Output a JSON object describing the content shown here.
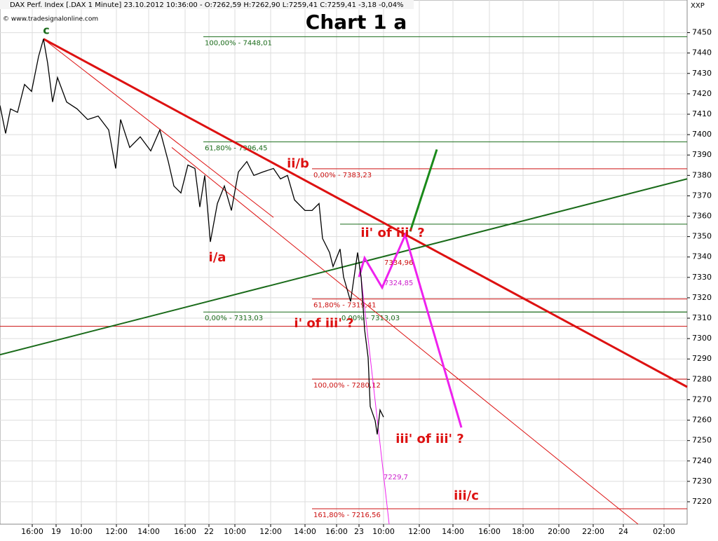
{
  "chart_data": {
    "type": "line",
    "title": "Chart 1 a",
    "header": "DAX Perf. Index [.DAX 1 Minute] 23.10.2012 10:36:00 - O:7262,59 H:7262,90 L:7259,41 C:7259,41 -3,18 -0,04%",
    "source": "© www.tradesignalonline.com",
    "symbol": "XXP",
    "color": "#000000",
    "grid": true,
    "xlim": [
      0,
      39.2
    ],
    "xticks": [
      {
        "value": 1.84,
        "label": "16:00"
      },
      {
        "value": 3.2,
        "label": "19"
      },
      {
        "value": 4.64,
        "label": "10:00"
      },
      {
        "value": 6.64,
        "label": "12:00"
      },
      {
        "value": 8.48,
        "label": "14:00"
      },
      {
        "value": 10.56,
        "label": "16:00"
      },
      {
        "value": 11.92,
        "label": "22"
      },
      {
        "value": 13.4,
        "label": "10:00"
      },
      {
        "value": 15.44,
        "label": "12:00"
      },
      {
        "value": 17.4,
        "label": "14:00"
      },
      {
        "value": 19.2,
        "label": "16:00"
      },
      {
        "value": 20.48,
        "label": "23"
      },
      {
        "value": 21.88,
        "label": "10:00"
      },
      {
        "value": 23.92,
        "label": "12:00"
      },
      {
        "value": 25.84,
        "label": "14:00"
      },
      {
        "value": 27.92,
        "label": "16:00"
      },
      {
        "value": 29.84,
        "label": "18:00"
      },
      {
        "value": 31.88,
        "label": "20:00"
      },
      {
        "value": 33.84,
        "label": "22:00"
      },
      {
        "value": 35.56,
        "label": "24"
      },
      {
        "value": 37.88,
        "label": "02:00"
      }
    ],
    "ylim": [
      7209,
      7466
    ],
    "yticks": [
      7220,
      7230,
      7240,
      7250,
      7260,
      7270,
      7280,
      7290,
      7300,
      7310,
      7320,
      7330,
      7340,
      7350,
      7360,
      7370,
      7380,
      7390,
      7400,
      7410,
      7420,
      7430,
      7440,
      7450
    ],
    "x": [
      0,
      0.32,
      0.6,
      1,
      1.4,
      1.8,
      2.2,
      2.48,
      2.72,
      3,
      3.28,
      3.8,
      4.4,
      5,
      5.6,
      6.2,
      6.6,
      6.88,
      7.4,
      8,
      8.6,
      9.12,
      9.6,
      9.92,
      10.32,
      10.72,
      11.12,
      11.4,
      11.68,
      12,
      12.4,
      12.8,
      13.2,
      13.6,
      14.08,
      14.48,
      15,
      15.6,
      16,
      16.4,
      16.8,
      17.4,
      17.8,
      18.2,
      18.4,
      18.8,
      19,
      19.4,
      19.6,
      20,
      20.4,
      20.6,
      20.8,
      21,
      21.12,
      21.4,
      21.52,
      21.68,
      21.88
    ],
    "values": [
      7414.3,
      7400.6,
      7412.6,
      7410.9,
      7424.6,
      7421.2,
      7438.3,
      7446.9,
      7434.9,
      7416,
      7428,
      7416,
      7412.6,
      7407.4,
      7409.1,
      7402.3,
      7383.4,
      7407.4,
      7393.7,
      7398.9,
      7392,
      7402.3,
      7386.8,
      7374.8,
      7371.4,
      7385.1,
      7383.4,
      7364.5,
      7380,
      7347.4,
      7366.2,
      7374.8,
      7362.8,
      7381.7,
      7386.8,
      7380,
      7381.7,
      7383.4,
      7378.3,
      7380,
      7368,
      7362.8,
      7362.8,
      7366.2,
      7349.1,
      7342.2,
      7335.3,
      7343.9,
      7330.2,
      7318.2,
      7342.2,
      7330.2,
      7304.4,
      7290.7,
      7266.7,
      7259.8,
      7253,
      7265,
      7261.5
    ],
    "levels": [
      {
        "label": "100,00% - 7448,01",
        "value": 7448.01,
        "x_start": 11.6,
        "color": "#1a6b1a"
      },
      {
        "label": "61,80% - 7396,45",
        "value": 7396.45,
        "x_start": 11.6,
        "color": "#1a6b1a"
      },
      {
        "label": "0,00% - 7383,23",
        "value": 7383.23,
        "x_start": 17.8,
        "color": "#cc1111"
      },
      {
        "value": 7356.1,
        "x_start": 19.4,
        "color": "#1a6b1a"
      },
      {
        "label": "61,80% - 7319,41",
        "value": 7319.41,
        "x_start": 17.8,
        "color": "#cc1111"
      },
      {
        "label": "0,00% - 7313,03",
        "value": 7313.03,
        "x_start": 11.6,
        "color": "#1a6b1a"
      },
      {
        "label": "0,00% - 7313,03",
        "value": 7313.03,
        "x_start": 19.4,
        "color": "#1a6b1a"
      },
      {
        "value": 7306,
        "x_start": 0,
        "color": "#cc1111"
      },
      {
        "label": "100,00% - 7280,12",
        "value": 7280.12,
        "x_start": 17.8,
        "color": "#cc1111"
      },
      {
        "label": "161,80% - 7216,56",
        "value": 7216.56,
        "x_start": 17.8,
        "color": "#cc1111"
      }
    ],
    "trendlines": [
      {
        "color": "#dd1111",
        "weight": "bold",
        "x": [
          2.48,
          39.2
        ],
        "values": [
          7446.9,
          7276.3
        ]
      },
      {
        "color": "#dd1111",
        "weight": "thin",
        "x": [
          2.48,
          15.6
        ],
        "values": [
          7446.9,
          7359.4
        ]
      },
      {
        "color": "#dd1111",
        "weight": "thin",
        "x": [
          9.8,
          36.4
        ],
        "values": [
          7393.7,
          7209
        ]
      },
      {
        "color": "#1a6b1a",
        "weight": "normal",
        "x": [
          0,
          39.2
        ],
        "values": [
          7292.1,
          7378.3
        ]
      },
      {
        "color": "#1a8a1a",
        "weight": "bold",
        "x": [
          23.4,
          24.92
        ],
        "values": [
          7352.5,
          7392.7
        ]
      },
      {
        "color": "#ee22ee",
        "weight": "bold",
        "x": [
          20.48,
          20.8,
          21.8,
          23.12,
          26.32
        ],
        "values": [
          7330.2,
          7339.5,
          7325,
          7350.8,
          7256.4
        ]
      },
      {
        "color": "#ee22ee",
        "weight": "thin",
        "x": [
          20.6,
          22.2
        ],
        "values": [
          7330.2,
          7209
        ]
      }
    ],
    "annotations": [
      {
        "text": "c",
        "color": "#1a6b1a"
      },
      {
        "text": "ii/b",
        "color": "#dd1111"
      },
      {
        "text": "i/a",
        "color": "#dd1111"
      },
      {
        "text": "ii' of iii' ?",
        "color": "#dd1111"
      },
      {
        "text": "i' of iii' ?",
        "color": "#dd1111"
      },
      {
        "text": "iii' of iii' ?",
        "color": "#dd1111"
      },
      {
        "text": "iii/c",
        "color": "#dd1111"
      },
      {
        "text": "7334,96",
        "color": "#cc1111"
      },
      {
        "text": "7324,85",
        "color": "#cc22cc"
      },
      {
        "text": "7229,7",
        "color": "#cc22cc"
      }
    ]
  }
}
